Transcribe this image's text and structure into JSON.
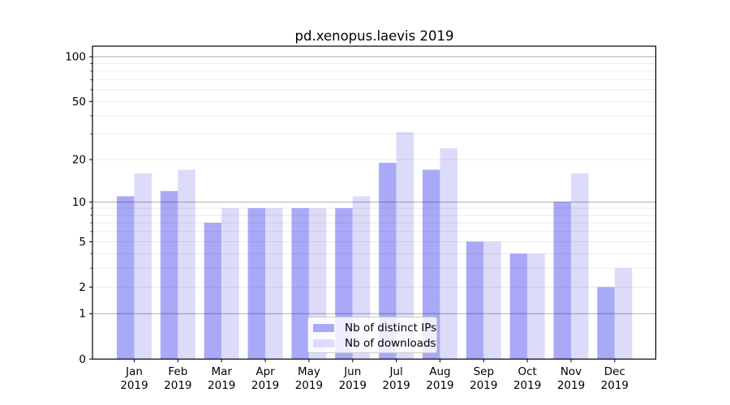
{
  "chart_data": {
    "type": "bar",
    "title": "pd.xenopus.laevis 2019",
    "categories": [
      "Jan",
      "Feb",
      "Mar",
      "Apr",
      "May",
      "Jun",
      "Jul",
      "Aug",
      "Sep",
      "Oct",
      "Nov",
      "Dec"
    ],
    "year_label": "2019",
    "series": [
      {
        "name": "Nb of distinct IPs",
        "color": "#a9a9f8",
        "values": [
          11,
          12,
          7,
          9,
          9,
          9,
          19,
          17,
          5,
          4,
          10,
          2
        ]
      },
      {
        "name": "Nb of downloads",
        "color": "#dcdcfa",
        "values": [
          16,
          17,
          9,
          9,
          9,
          11,
          31,
          24,
          5,
          4,
          16,
          3
        ]
      }
    ],
    "xlabel": "",
    "ylabel": "",
    "yscale": "log1p",
    "ylim": [
      0,
      118
    ],
    "y_labeled_ticks": [
      100,
      50,
      20,
      10,
      5,
      2,
      1,
      0
    ],
    "y_major_gridlines": [
      100,
      10,
      1
    ],
    "y_minor_gridlines": [
      90,
      80,
      70,
      60,
      50,
      40,
      30,
      20,
      9,
      8,
      7,
      6,
      5,
      4,
      3,
      2
    ],
    "grid": true,
    "legend_position": "lower center",
    "colors": {
      "spine": "#000000",
      "grid_minor": "rgba(0,0,0,0.08)",
      "grid_major": "rgba(0,0,0,0.32)",
      "background": "#ffffff"
    }
  }
}
